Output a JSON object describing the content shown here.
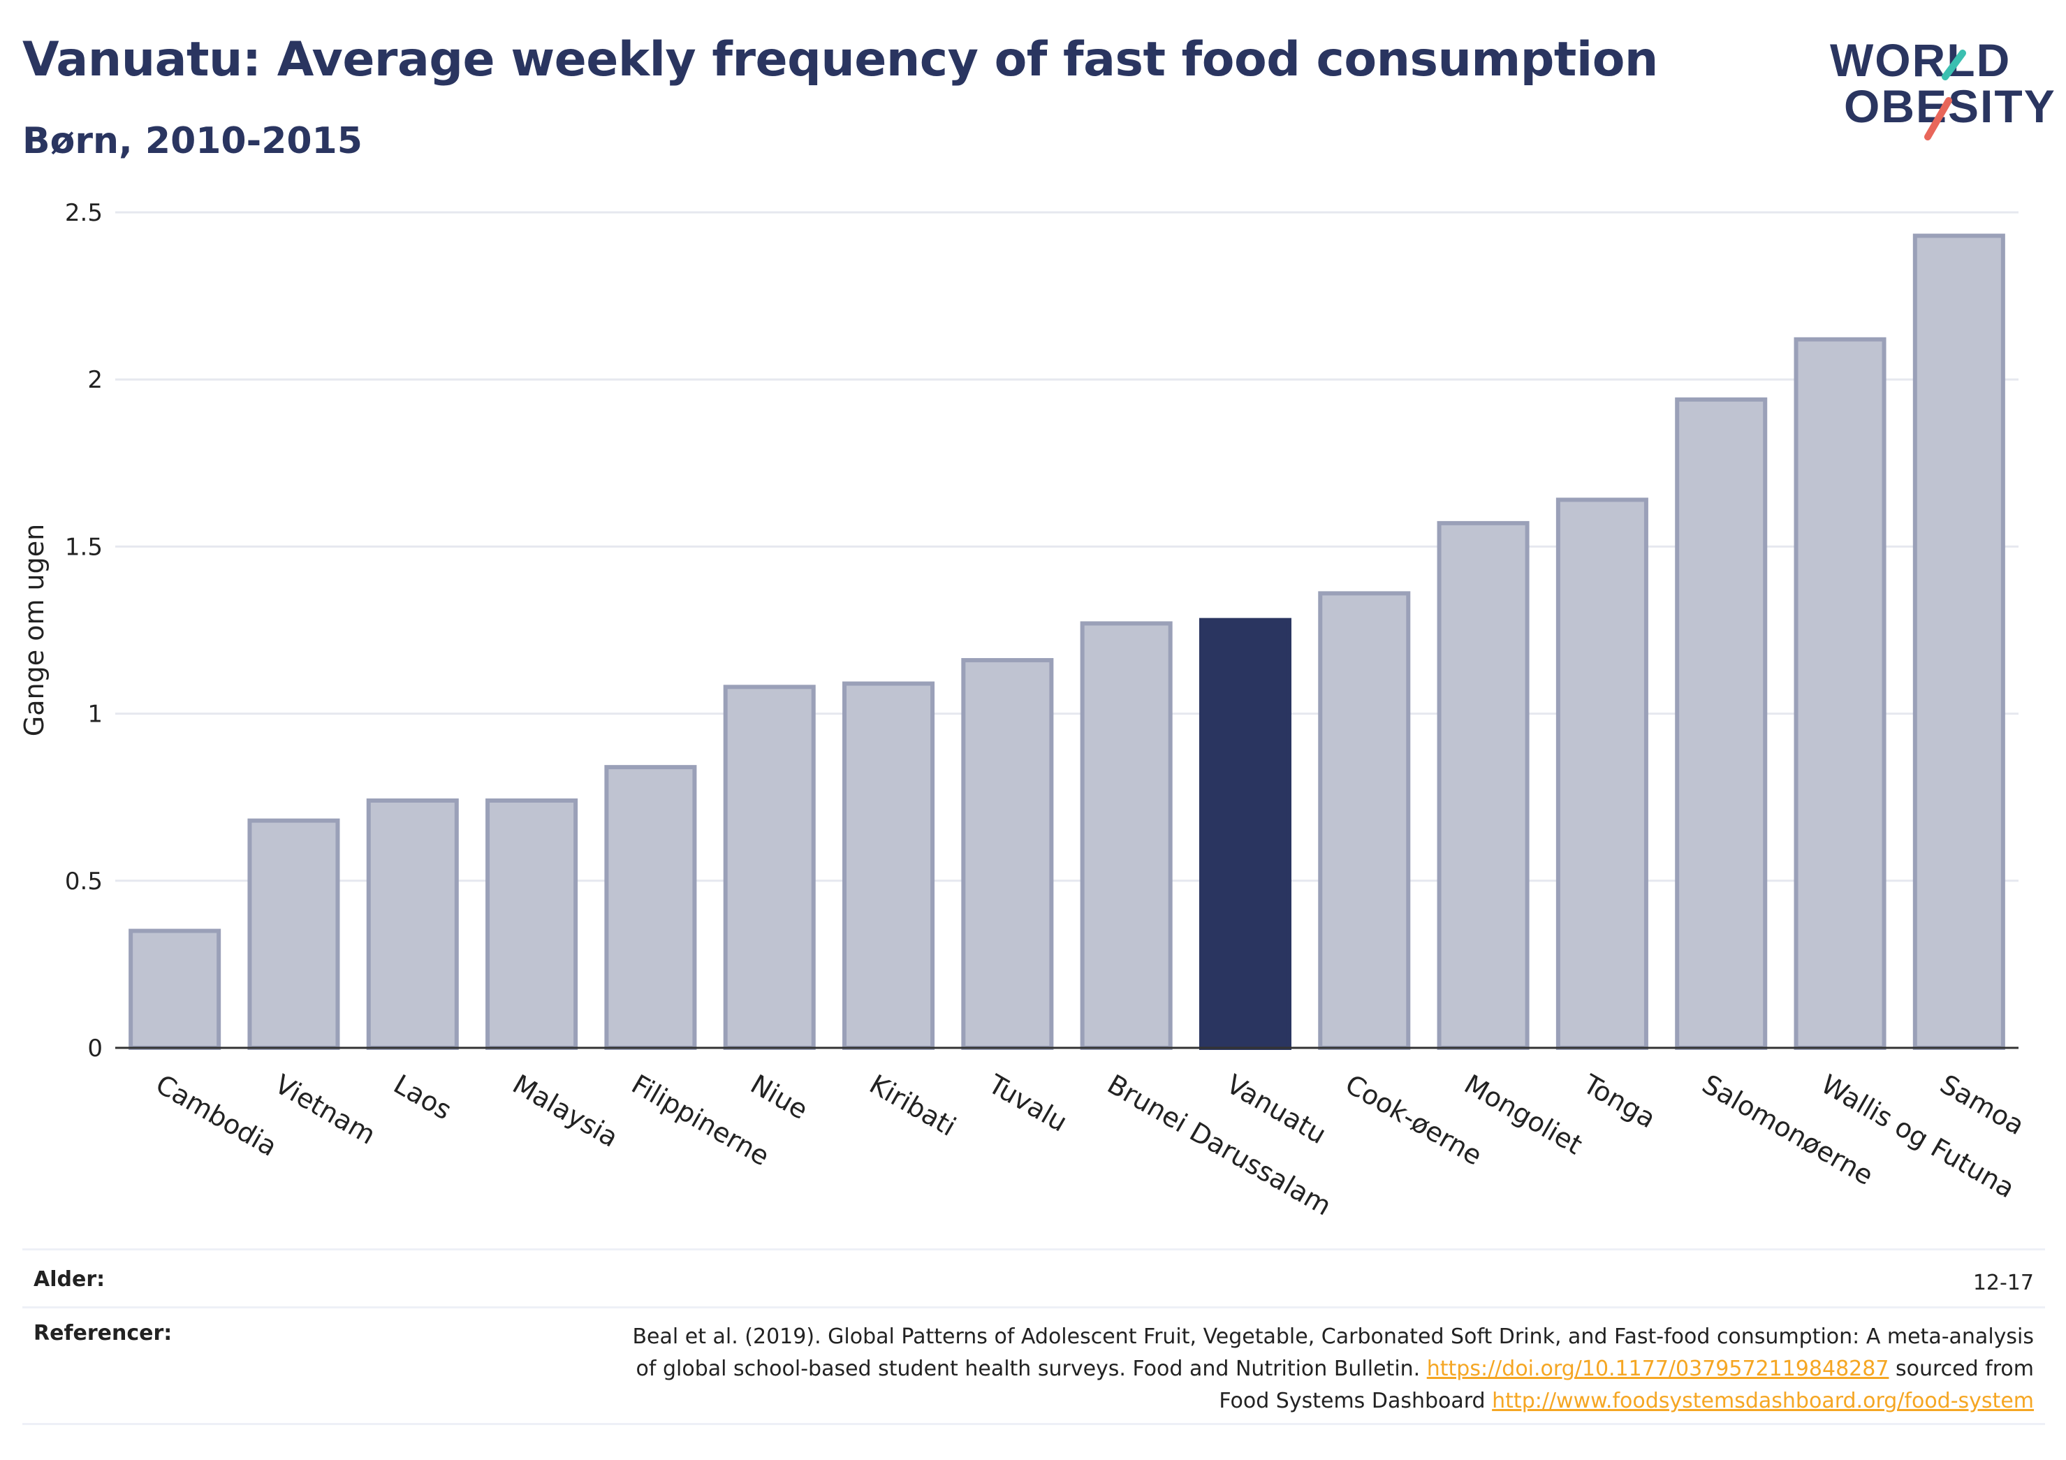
{
  "header": {
    "title": "Vanuatu: Average weekly frequency of fast food consumption",
    "subtitle": "Børn, 2010-2015"
  },
  "logo": {
    "line1": "WORLD",
    "line2": "OBESITY",
    "accent_teal": "#3bbfb0",
    "accent_red": "#e8665a"
  },
  "chart_data": {
    "type": "bar",
    "categories": [
      "Cambodia",
      "Vietnam",
      "Laos",
      "Malaysia",
      "Filippinerne",
      "Niue",
      "Kiribati",
      "Tuvalu",
      "Brunei Darussalam",
      "Vanuatu",
      "Cook-øerne",
      "Mongoliet",
      "Tonga",
      "Salomonøerne",
      "Wallis og Futuna",
      "Samoa"
    ],
    "values": [
      0.35,
      0.68,
      0.74,
      0.74,
      0.84,
      1.08,
      1.09,
      1.16,
      1.27,
      1.28,
      1.36,
      1.57,
      1.64,
      1.94,
      2.12,
      2.43
    ],
    "highlight": "Vanuatu",
    "ylabel": "Gange om ugen",
    "xlabel": "",
    "ylim": [
      0,
      2.5
    ],
    "yticks": [
      0,
      0.5,
      1,
      1.5,
      2,
      2.5
    ],
    "ytick_labels": [
      "0",
      "0.5",
      "1",
      "1.5",
      "2",
      "2.5"
    ],
    "grid": true,
    "colors": {
      "bar": "#bfc3d1",
      "bar_border": "#9aa0b8",
      "highlight": "#2a3560",
      "grid": "#e6e8ef"
    }
  },
  "info": {
    "age_label": "Alder:",
    "age_value": "12-17",
    "refs_label": "Referencer:",
    "refs_text1": "Beal et al. (2019). Global Patterns of Adolescent Fruit, Vegetable, Carbonated Soft Drink, and Fast-food consumption: A meta-analysis",
    "refs_text2": "of global school-based student health surveys. Food and Nutrition Bulletin.",
    "refs_link1": "https://doi.org/10.1177/0379572119848287",
    "refs_text3": "sourced from",
    "refs_text4": "Food Systems Dashboard",
    "refs_link2": "http://www.foodsystemsdashboard.org/food-system"
  }
}
